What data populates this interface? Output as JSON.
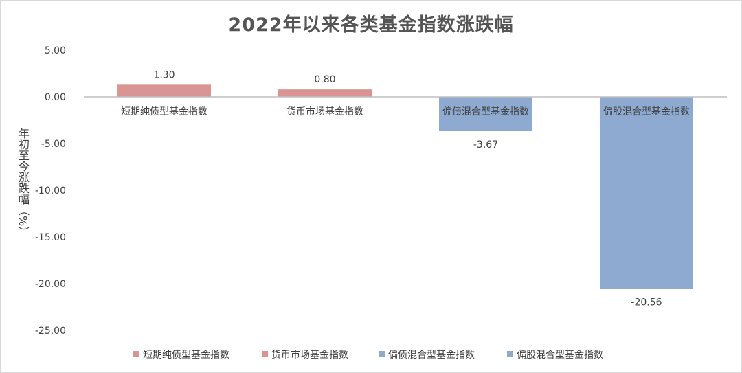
{
  "chart_data": {
    "type": "bar",
    "title": "2022年以来各类基金指数涨跌幅",
    "ylabel": "年初至今涨跌幅（%）",
    "xlabel": "",
    "categories": [
      "短期纯债型基金指数",
      "货币市场基金指数",
      "偏债混合型基金指数",
      "偏股混合型基金指数"
    ],
    "values": [
      1.3,
      0.8,
      -3.67,
      -20.56
    ],
    "value_labels": [
      "1.30",
      "0.80",
      "-3.67",
      "-20.56"
    ],
    "colors": [
      "#d99594",
      "#d99594",
      "#8eaad1",
      "#8eaad1"
    ],
    "ylim": [
      -25,
      5
    ],
    "yticks": [
      5,
      0,
      -5,
      -10,
      -15,
      -20,
      -25
    ],
    "ytick_labels": [
      "5.00",
      "0.00",
      "-5.00",
      "-10.00",
      "-15.00",
      "-20.00",
      "-25.00"
    ],
    "grid": false,
    "legend_position": "bottom",
    "legend": [
      {
        "label": "短期纯债型基金指数",
        "color": "#d99594"
      },
      {
        "label": "货币市场基金指数",
        "color": "#d99594"
      },
      {
        "label": "偏债混合型基金指数",
        "color": "#8eaad1"
      },
      {
        "label": "偏股混合型基金指数",
        "color": "#8eaad1"
      }
    ]
  }
}
